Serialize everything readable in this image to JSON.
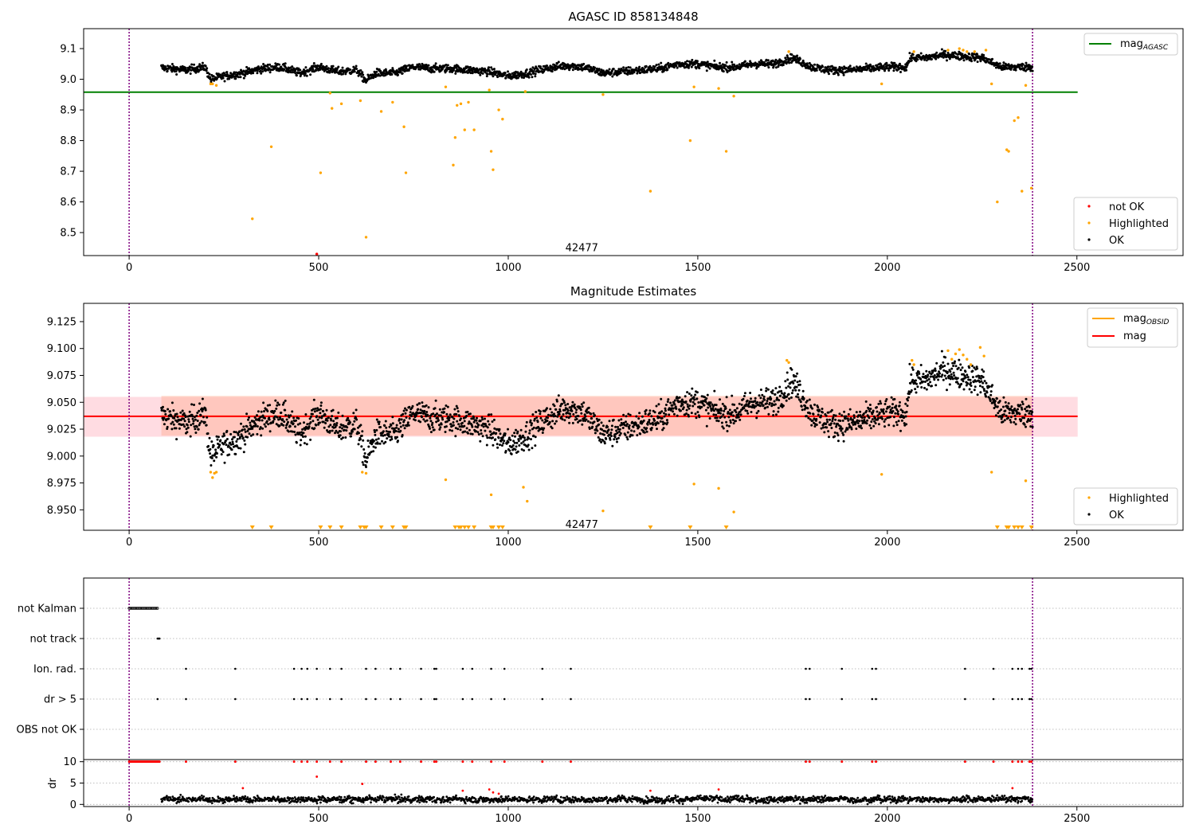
{
  "chart_data": [
    {
      "type": "scatter",
      "title": "AGASC ID 858134848",
      "xlim": [
        -120,
        2780
      ],
      "ylim": [
        8.425,
        9.165
      ],
      "xticks": [
        0,
        500,
        1000,
        1500,
        2000,
        2500
      ],
      "yticks": [
        8.5,
        8.6,
        8.7,
        8.8,
        8.9,
        9.0,
        9.1
      ],
      "vlines": [
        0,
        2383
      ],
      "hline": {
        "label": "mag_AGASC",
        "label_main": "mag",
        "label_sub": "AGASC",
        "value": 8.958,
        "x_range": [
          -120,
          2502
        ],
        "color": "#008000"
      },
      "annotation": {
        "text": "42477",
        "x": 1194,
        "y": 8.45
      },
      "legend_location": "top-right / lower-right",
      "legend": [
        {
          "name": "not OK",
          "color": "#ff0000"
        },
        {
          "name": "Highlighted",
          "color": "#ffa500"
        },
        {
          "name": "OK",
          "color": "#000000"
        }
      ],
      "ok_profile": {
        "x_range": [
          85,
          2383
        ],
        "knots_x": [
          85,
          150,
          200,
          215,
          250,
          300,
          350,
          400,
          450,
          500,
          550,
          600,
          625,
          650,
          700,
          750,
          800,
          850,
          900,
          950,
          1000,
          1050,
          1100,
          1150,
          1200,
          1250,
          1300,
          1350,
          1400,
          1450,
          1500,
          1550,
          1600,
          1650,
          1700,
          1750,
          1800,
          1850,
          1900,
          1950,
          2000,
          2050,
          2060,
          2100,
          2150,
          2200,
          2250,
          2300,
          2350,
          2383
        ],
        "knots_y": [
          9.038,
          9.03,
          9.04,
          9.0,
          9.01,
          9.02,
          9.035,
          9.04,
          9.02,
          9.04,
          9.025,
          9.03,
          8.995,
          9.02,
          9.02,
          9.04,
          9.035,
          9.035,
          9.03,
          9.025,
          9.01,
          9.02,
          9.035,
          9.045,
          9.04,
          9.02,
          9.025,
          9.03,
          9.035,
          9.05,
          9.05,
          9.04,
          9.04,
          9.05,
          9.05,
          9.07,
          9.04,
          9.03,
          9.03,
          9.035,
          9.04,
          9.04,
          9.07,
          9.07,
          9.08,
          9.075,
          9.07,
          9.04,
          9.04,
          9.04
        ],
        "scatter": 0.012
      },
      "highlighted_points": {
        "x": [
          215,
          220,
          230,
          325,
          375,
          505,
          530,
          535,
          560,
          610,
          625,
          665,
          695,
          725,
          730,
          835,
          855,
          860,
          865,
          875,
          885,
          895,
          910,
          950,
          955,
          960,
          975,
          985,
          1045,
          1250,
          1375,
          1480,
          1490,
          1555,
          1575,
          1595,
          1740,
          1985,
          2070,
          2160,
          2190,
          2200,
          2210,
          2230,
          2260,
          2275,
          2290,
          2315,
          2320,
          2335,
          2345,
          2355,
          2365,
          2380
        ],
        "y": [
          8.985,
          8.985,
          8.98,
          8.545,
          8.78,
          8.695,
          8.955,
          8.905,
          8.92,
          8.93,
          8.485,
          8.895,
          8.925,
          8.845,
          8.695,
          8.975,
          8.72,
          8.81,
          8.915,
          8.92,
          8.835,
          8.925,
          8.835,
          8.965,
          8.765,
          8.705,
          8.9,
          8.87,
          8.96,
          8.95,
          8.635,
          8.8,
          8.975,
          8.97,
          8.765,
          8.945,
          9.09,
          8.985,
          9.09,
          9.095,
          9.1,
          9.095,
          9.09,
          9.09,
          9.095,
          8.985,
          8.6,
          8.77,
          8.765,
          8.865,
          8.875,
          8.635,
          8.98,
          8.645
        ]
      },
      "not_ok_points": {
        "x": [
          495
        ],
        "y": [
          8.43
        ]
      }
    },
    {
      "type": "scatter",
      "title": "Magnitude Estimates",
      "xlim": [
        -120,
        2780
      ],
      "ylim": [
        8.931,
        9.142
      ],
      "xticks": [
        0,
        500,
        1000,
        1500,
        2000,
        2500
      ],
      "yticks": [
        8.95,
        8.975,
        9.0,
        9.025,
        9.05,
        9.075,
        9.1,
        9.125
      ],
      "vlines": [
        0,
        2383
      ],
      "mag_line": {
        "label": "mag",
        "value": 9.037,
        "x_range": [
          -120,
          2502
        ],
        "color": "#ff0000"
      },
      "mag_band": {
        "low": 9.018,
        "high": 9.055,
        "color": "#ffc0cb"
      },
      "obsid_band": {
        "low": 9.019,
        "high": 9.056,
        "x_range": [
          85,
          2383
        ],
        "color": "#ffa07a"
      },
      "obsid_line": {
        "label": "mag_OBSID",
        "label_main": "mag",
        "label_sub": "OBSID",
        "value": 9.037,
        "color": "#ffa500"
      },
      "annotation": {
        "text": "42477",
        "x": 1194,
        "y": 8.936
      },
      "legend": [
        {
          "name": "mag_OBSID",
          "color": "#ffa500"
        },
        {
          "name": "mag",
          "color": "#ff0000"
        },
        {
          "name": "Highlighted",
          "color": "#ffa500"
        },
        {
          "name": "OK",
          "color": "#000000"
        }
      ],
      "ok_profile_ref": 0,
      "highlighted_points": {
        "x": [
          215,
          220,
          225,
          230,
          615,
          625,
          835,
          955,
          1040,
          1050,
          1250,
          1490,
          1555,
          1595,
          1735,
          1740,
          1985,
          2065,
          2070,
          2160,
          2170,
          2180,
          2190,
          2200,
          2210,
          2220,
          2245,
          2255,
          2275,
          2365
        ],
        "y": [
          8.985,
          8.98,
          8.984,
          8.985,
          8.985,
          8.984,
          8.978,
          8.964,
          8.971,
          8.958,
          8.949,
          8.974,
          8.97,
          8.948,
          9.089,
          9.087,
          8.983,
          9.089,
          9.085,
          9.098,
          9.09,
          9.095,
          9.099,
          9.094,
          9.09,
          9.085,
          9.101,
          9.093,
          8.985,
          8.977
        ]
      },
      "clipped_low_markers": [
        325,
        375,
        505,
        530,
        560,
        610,
        620,
        625,
        665,
        695,
        725,
        730,
        860,
        870,
        875,
        885,
        895,
        910,
        955,
        960,
        975,
        985,
        1375,
        1480,
        1575,
        2290,
        2315,
        2320,
        2335,
        2345,
        2355,
        2380
      ]
    },
    {
      "type": "scatter",
      "xlim": [
        -120,
        2780
      ],
      "xticks": [
        0,
        500,
        1000,
        1500,
        2000,
        2500
      ],
      "vlines": [
        0,
        2383
      ],
      "flag_rows": [
        "not Kalman",
        "not track",
        "Ion. rad.",
        "dr > 5",
        "OBS not OK"
      ],
      "flag_points": {
        "not Kalman": {
          "ranges": [
            [
              0,
              75
            ]
          ]
        },
        "not track": {
          "x": [
            75,
            78,
            80
          ]
        },
        "Ion. rad.": {
          "x": [
            150,
            280,
            435,
            455,
            470,
            495,
            530,
            560,
            625,
            650,
            690,
            715,
            770,
            805,
            810,
            880,
            905,
            955,
            990,
            1090,
            1165,
            1785,
            1795,
            1880,
            1960,
            1970,
            2205,
            2280,
            2330,
            2345,
            2355,
            2375,
            2380
          ]
        },
        "dr > 5": {
          "x": [
            75,
            150,
            280,
            435,
            455,
            470,
            495,
            530,
            560,
            625,
            650,
            690,
            715,
            770,
            805,
            810,
            880,
            905,
            955,
            990,
            1090,
            1165,
            1785,
            1795,
            1880,
            1960,
            1970,
            2205,
            2280,
            2330,
            2345,
            2355,
            2375,
            2380
          ]
        },
        "OBS not OK": {
          "x": []
        }
      },
      "dr_panel": {
        "ylabel": "dr",
        "yticks": [
          0,
          5,
          10
        ],
        "ylim": [
          -0.5,
          10.5
        ],
        "clipped_value": 10,
        "clipped_x": [
          150,
          280,
          435,
          455,
          470,
          495,
          530,
          560,
          625,
          650,
          690,
          715,
          770,
          805,
          810,
          880,
          905,
          955,
          990,
          1090,
          1165,
          1785,
          1795,
          1880,
          1960,
          1970,
          2205,
          2280,
          2330,
          2345,
          2355,
          2375,
          2380
        ],
        "clipped_range_x": [
          0,
          80
        ],
        "red_outliers": {
          "x": [
            495,
            300,
            615,
            880,
            950,
            960,
            975,
            1375,
            1555,
            2330
          ],
          "y": [
            6.5,
            3.8,
            4.8,
            3.2,
            3.5,
            2.8,
            2.5,
            3.2,
            3.5,
            3.8
          ]
        },
        "profile": {
          "x_range": [
            85,
            2383
          ],
          "mean": 1.2,
          "spread": 1.0
        }
      }
    }
  ]
}
